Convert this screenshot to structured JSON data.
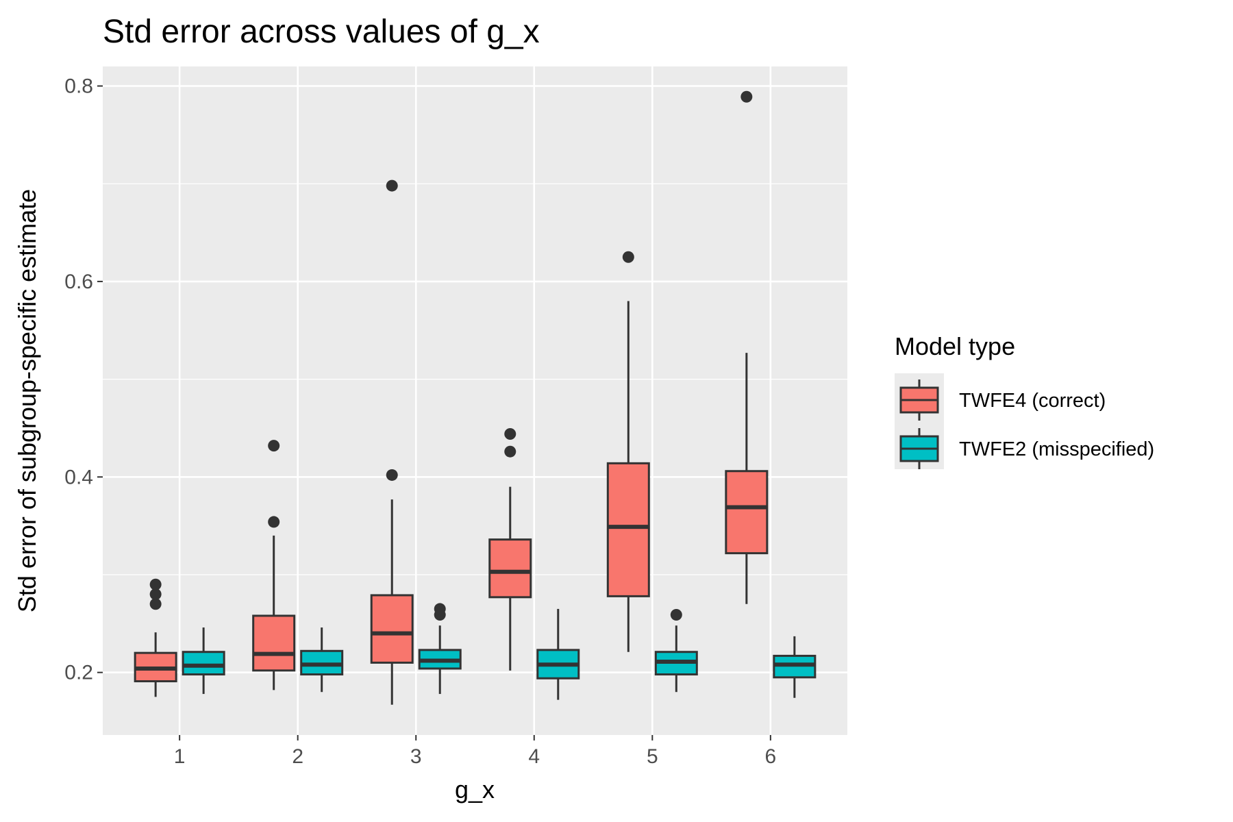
{
  "chart_data": {
    "type": "boxplot",
    "title": "Std error across values of g_x",
    "xlabel": "g_x",
    "ylabel": "Std error of subgroup-specific estimate",
    "categories": [
      "1",
      "2",
      "3",
      "4",
      "5",
      "6"
    ],
    "ylim": [
      0.136,
      0.82
    ],
    "yticks": [
      0.2,
      0.4,
      0.6,
      0.8
    ],
    "ytick_labels": [
      "0.2",
      "0.4",
      "0.6",
      "0.8"
    ],
    "grid": true,
    "legend": {
      "title": "Model type",
      "position": "right"
    },
    "series": [
      {
        "name": "TWFE4 (correct)",
        "color": "#F8766D",
        "boxes": [
          {
            "category": "1",
            "whisker_low": 0.175,
            "q1": 0.191,
            "median": 0.204,
            "q3": 0.22,
            "whisker_high": 0.241,
            "outliers": [
              0.27,
              0.28,
              0.29
            ]
          },
          {
            "category": "2",
            "whisker_low": 0.182,
            "q1": 0.202,
            "median": 0.219,
            "q3": 0.258,
            "whisker_high": 0.34,
            "outliers": [
              0.354,
              0.432
            ]
          },
          {
            "category": "3",
            "whisker_low": 0.167,
            "q1": 0.21,
            "median": 0.24,
            "q3": 0.279,
            "whisker_high": 0.377,
            "outliers": [
              0.402,
              0.698
            ]
          },
          {
            "category": "4",
            "whisker_low": 0.202,
            "q1": 0.277,
            "median": 0.303,
            "q3": 0.336,
            "whisker_high": 0.39,
            "outliers": [
              0.426,
              0.444
            ]
          },
          {
            "category": "5",
            "whisker_low": 0.221,
            "q1": 0.278,
            "median": 0.349,
            "q3": 0.414,
            "whisker_high": 0.58,
            "outliers": [
              0.625
            ]
          },
          {
            "category": "6",
            "whisker_low": 0.27,
            "q1": 0.322,
            "median": 0.369,
            "q3": 0.406,
            "whisker_high": 0.527,
            "outliers": [
              0.789
            ]
          }
        ]
      },
      {
        "name": "TWFE2 (misspecified)",
        "color": "#00BFC4",
        "boxes": [
          {
            "category": "1",
            "whisker_low": 0.178,
            "q1": 0.198,
            "median": 0.207,
            "q3": 0.221,
            "whisker_high": 0.246,
            "outliers": []
          },
          {
            "category": "2",
            "whisker_low": 0.18,
            "q1": 0.198,
            "median": 0.208,
            "q3": 0.222,
            "whisker_high": 0.246,
            "outliers": []
          },
          {
            "category": "3",
            "whisker_low": 0.178,
            "q1": 0.204,
            "median": 0.212,
            "q3": 0.223,
            "whisker_high": 0.248,
            "outliers": [
              0.259,
              0.265
            ]
          },
          {
            "category": "4",
            "whisker_low": 0.172,
            "q1": 0.194,
            "median": 0.208,
            "q3": 0.223,
            "whisker_high": 0.265,
            "outliers": []
          },
          {
            "category": "5",
            "whisker_low": 0.18,
            "q1": 0.198,
            "median": 0.211,
            "q3": 0.221,
            "whisker_high": 0.248,
            "outliers": [
              0.259
            ]
          },
          {
            "category": "6",
            "whisker_low": 0.174,
            "q1": 0.195,
            "median": 0.208,
            "q3": 0.217,
            "whisker_high": 0.237,
            "outliers": []
          }
        ]
      }
    ]
  }
}
